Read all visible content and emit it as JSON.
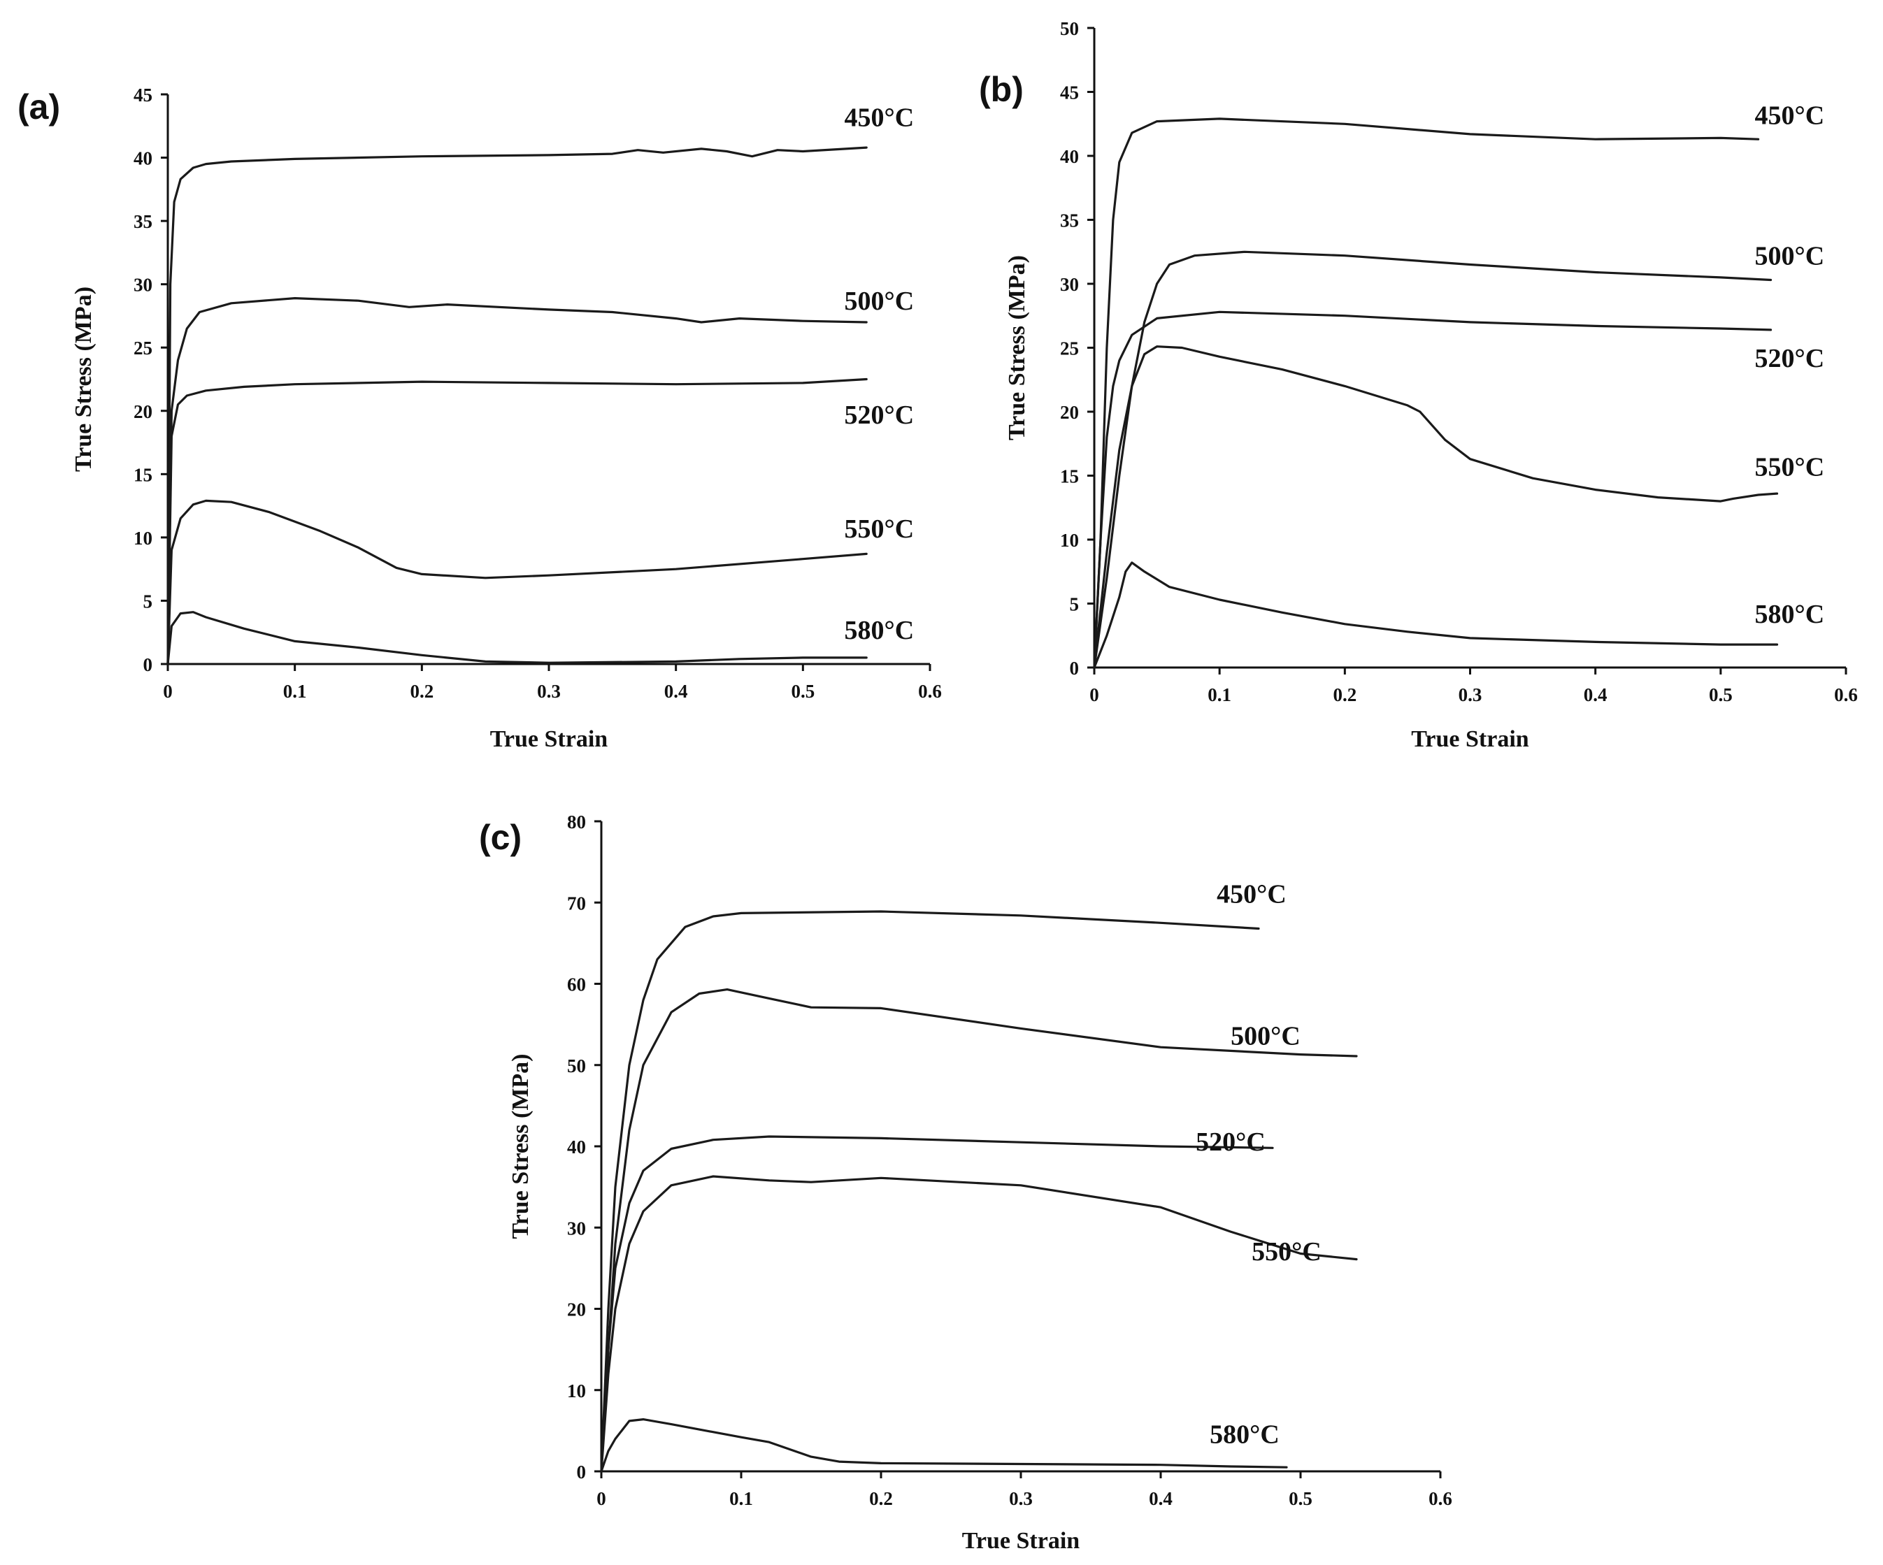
{
  "chart_data": [
    {
      "panel": "(a)",
      "type": "line",
      "xlabel": "True Strain",
      "ylabel": "True Stress (MPa)",
      "xlim": [
        0,
        0.6
      ],
      "ylim": [
        0,
        45
      ],
      "xticks": [
        "0",
        "0.1",
        "0.2",
        "0.3",
        "0.4",
        "0.5",
        "0.6"
      ],
      "yticks": [
        "0",
        "5",
        "10",
        "15",
        "20",
        "25",
        "30",
        "35",
        "40",
        "45"
      ],
      "series": [
        {
          "name": "450°C",
          "label_at": [
            0.56,
            42.5
          ],
          "points": [
            [
              0,
              0
            ],
            [
              0.002,
              30
            ],
            [
              0.005,
              36.5
            ],
            [
              0.01,
              38.3
            ],
            [
              0.02,
              39.2
            ],
            [
              0.03,
              39.5
            ],
            [
              0.05,
              39.7
            ],
            [
              0.1,
              39.9
            ],
            [
              0.2,
              40.1
            ],
            [
              0.3,
              40.2
            ],
            [
              0.35,
              40.3
            ],
            [
              0.37,
              40.6
            ],
            [
              0.39,
              40.4
            ],
            [
              0.42,
              40.7
            ],
            [
              0.44,
              40.5
            ],
            [
              0.46,
              40.1
            ],
            [
              0.48,
              40.6
            ],
            [
              0.5,
              40.5
            ],
            [
              0.55,
              40.8
            ]
          ]
        },
        {
          "name": "500°C",
          "label_at": [
            0.56,
            28.0
          ],
          "points": [
            [
              0,
              0
            ],
            [
              0.003,
              20
            ],
            [
              0.008,
              24
            ],
            [
              0.015,
              26.5
            ],
            [
              0.025,
              27.8
            ],
            [
              0.05,
              28.5
            ],
            [
              0.1,
              28.9
            ],
            [
              0.15,
              28.7
            ],
            [
              0.19,
              28.2
            ],
            [
              0.22,
              28.4
            ],
            [
              0.3,
              28.0
            ],
            [
              0.35,
              27.8
            ],
            [
              0.4,
              27.3
            ],
            [
              0.42,
              27.0
            ],
            [
              0.45,
              27.3
            ],
            [
              0.5,
              27.1
            ],
            [
              0.55,
              27.0
            ]
          ]
        },
        {
          "name": "520°C",
          "label_at": [
            0.56,
            19.0
          ],
          "points": [
            [
              0,
              0
            ],
            [
              0.003,
              18
            ],
            [
              0.008,
              20.5
            ],
            [
              0.015,
              21.2
            ],
            [
              0.03,
              21.6
            ],
            [
              0.06,
              21.9
            ],
            [
              0.1,
              22.1
            ],
            [
              0.2,
              22.3
            ],
            [
              0.3,
              22.2
            ],
            [
              0.4,
              22.1
            ],
            [
              0.5,
              22.2
            ],
            [
              0.55,
              22.5
            ]
          ]
        },
        {
          "name": "550°C",
          "label_at": [
            0.56,
            10.0
          ],
          "points": [
            [
              0,
              0
            ],
            [
              0.003,
              9
            ],
            [
              0.01,
              11.5
            ],
            [
              0.02,
              12.6
            ],
            [
              0.03,
              12.9
            ],
            [
              0.05,
              12.8
            ],
            [
              0.08,
              12.0
            ],
            [
              0.12,
              10.5
            ],
            [
              0.15,
              9.2
            ],
            [
              0.18,
              7.6
            ],
            [
              0.2,
              7.1
            ],
            [
              0.25,
              6.8
            ],
            [
              0.3,
              7.0
            ],
            [
              0.4,
              7.5
            ],
            [
              0.5,
              8.3
            ],
            [
              0.55,
              8.7
            ]
          ]
        },
        {
          "name": "580°C",
          "label_at": [
            0.56,
            2.0
          ],
          "points": [
            [
              0,
              0
            ],
            [
              0.003,
              3
            ],
            [
              0.01,
              4.0
            ],
            [
              0.02,
              4.1
            ],
            [
              0.03,
              3.7
            ],
            [
              0.06,
              2.8
            ],
            [
              0.1,
              1.8
            ],
            [
              0.15,
              1.3
            ],
            [
              0.2,
              0.7
            ],
            [
              0.25,
              0.2
            ],
            [
              0.3,
              0.1
            ],
            [
              0.4,
              0.2
            ],
            [
              0.45,
              0.4
            ],
            [
              0.5,
              0.5
            ],
            [
              0.55,
              0.5
            ]
          ]
        }
      ]
    },
    {
      "panel": "(b)",
      "type": "line",
      "xlabel": "True Strain",
      "ylabel": "True Stress (MPa)",
      "xlim": [
        0,
        0.6
      ],
      "ylim": [
        0,
        50
      ],
      "xticks": [
        "0",
        "0.1",
        "0.2",
        "0.3",
        "0.4",
        "0.5",
        "0.6"
      ],
      "yticks": [
        "0",
        "5",
        "10",
        "15",
        "20",
        "25",
        "30",
        "35",
        "40",
        "45",
        "50"
      ],
      "series": [
        {
          "name": "450°C",
          "label_at": [
            0.555,
            42.5
          ],
          "points": [
            [
              0,
              0
            ],
            [
              0.005,
              10
            ],
            [
              0.01,
              25
            ],
            [
              0.015,
              35
            ],
            [
              0.02,
              39.5
            ],
            [
              0.03,
              41.8
            ],
            [
              0.05,
              42.7
            ],
            [
              0.1,
              42.9
            ],
            [
              0.2,
              42.5
            ],
            [
              0.3,
              41.7
            ],
            [
              0.4,
              41.3
            ],
            [
              0.5,
              41.4
            ],
            [
              0.53,
              41.3
            ]
          ]
        },
        {
          "name": "500°C",
          "label_at": [
            0.555,
            31.5
          ],
          "points": [
            [
              0,
              0
            ],
            [
              0.01,
              7
            ],
            [
              0.02,
              15
            ],
            [
              0.03,
              22
            ],
            [
              0.04,
              27
            ],
            [
              0.05,
              30
            ],
            [
              0.06,
              31.5
            ],
            [
              0.08,
              32.2
            ],
            [
              0.12,
              32.5
            ],
            [
              0.2,
              32.2
            ],
            [
              0.3,
              31.5
            ],
            [
              0.4,
              30.9
            ],
            [
              0.5,
              30.5
            ],
            [
              0.54,
              30.3
            ]
          ]
        },
        {
          "name": "520°C",
          "label_at": [
            0.555,
            23.5
          ],
          "points": [
            [
              0,
              0
            ],
            [
              0.005,
              10
            ],
            [
              0.01,
              18
            ],
            [
              0.015,
              22
            ],
            [
              0.02,
              24
            ],
            [
              0.03,
              26
            ],
            [
              0.05,
              27.3
            ],
            [
              0.1,
              27.8
            ],
            [
              0.2,
              27.5
            ],
            [
              0.3,
              27.0
            ],
            [
              0.4,
              26.7
            ],
            [
              0.5,
              26.5
            ],
            [
              0.54,
              26.4
            ]
          ]
        },
        {
          "name": "550°C",
          "label_at": [
            0.555,
            15.0
          ],
          "points": [
            [
              0,
              0
            ],
            [
              0.01,
              9
            ],
            [
              0.02,
              17
            ],
            [
              0.03,
              22
            ],
            [
              0.04,
              24.5
            ],
            [
              0.05,
              25.1
            ],
            [
              0.07,
              25.0
            ],
            [
              0.1,
              24.3
            ],
            [
              0.15,
              23.3
            ],
            [
              0.2,
              22.0
            ],
            [
              0.25,
              20.5
            ],
            [
              0.26,
              20.0
            ],
            [
              0.28,
              17.8
            ],
            [
              0.3,
              16.3
            ],
            [
              0.35,
              14.8
            ],
            [
              0.4,
              13.9
            ],
            [
              0.45,
              13.3
            ],
            [
              0.5,
              13.0
            ],
            [
              0.51,
              13.2
            ],
            [
              0.53,
              13.5
            ],
            [
              0.545,
              13.6
            ]
          ]
        },
        {
          "name": "580°C",
          "label_at": [
            0.555,
            3.5
          ],
          "points": [
            [
              0,
              0
            ],
            [
              0.01,
              2.5
            ],
            [
              0.02,
              5.5
            ],
            [
              0.025,
              7.5
            ],
            [
              0.03,
              8.2
            ],
            [
              0.04,
              7.5
            ],
            [
              0.06,
              6.3
            ],
            [
              0.1,
              5.3
            ],
            [
              0.15,
              4.3
            ],
            [
              0.2,
              3.4
            ],
            [
              0.25,
              2.8
            ],
            [
              0.3,
              2.3
            ],
            [
              0.4,
              2.0
            ],
            [
              0.5,
              1.8
            ],
            [
              0.545,
              1.8
            ]
          ]
        }
      ]
    },
    {
      "panel": "(c)",
      "type": "line",
      "xlabel": "True Strain",
      "ylabel": "True Stress (MPa)",
      "xlim": [
        0,
        0.6
      ],
      "ylim": [
        0,
        80
      ],
      "xticks": [
        "0",
        "0.1",
        "0.2",
        "0.3",
        "0.4",
        "0.5",
        "0.6"
      ],
      "yticks": [
        "0",
        "10",
        "20",
        "30",
        "40",
        "50",
        "60",
        "70",
        "80"
      ],
      "series": [
        {
          "name": "450°C",
          "label_at": [
            0.465,
            70.0
          ],
          "points": [
            [
              0,
              0
            ],
            [
              0.005,
              20
            ],
            [
              0.01,
              35
            ],
            [
              0.02,
              50
            ],
            [
              0.03,
              58
            ],
            [
              0.04,
              63
            ],
            [
              0.06,
              67
            ],
            [
              0.08,
              68.3
            ],
            [
              0.1,
              68.7
            ],
            [
              0.2,
              68.9
            ],
            [
              0.3,
              68.4
            ],
            [
              0.4,
              67.5
            ],
            [
              0.47,
              66.8
            ]
          ]
        },
        {
          "name": "500°C",
          "label_at": [
            0.475,
            52.5
          ],
          "points": [
            [
              0,
              0
            ],
            [
              0.005,
              15
            ],
            [
              0.01,
              28
            ],
            [
              0.02,
              42
            ],
            [
              0.03,
              50
            ],
            [
              0.05,
              56.5
            ],
            [
              0.07,
              58.8
            ],
            [
              0.09,
              59.3
            ],
            [
              0.12,
              58.2
            ],
            [
              0.15,
              57.1
            ],
            [
              0.2,
              57.0
            ],
            [
              0.3,
              54.5
            ],
            [
              0.4,
              52.2
            ],
            [
              0.5,
              51.3
            ],
            [
              0.54,
              51.1
            ]
          ]
        },
        {
          "name": "520°C",
          "label_at": [
            0.45,
            39.5
          ],
          "points": [
            [
              0,
              0
            ],
            [
              0.005,
              15
            ],
            [
              0.01,
              25
            ],
            [
              0.02,
              33
            ],
            [
              0.03,
              37
            ],
            [
              0.05,
              39.7
            ],
            [
              0.08,
              40.8
            ],
            [
              0.12,
              41.2
            ],
            [
              0.2,
              41.0
            ],
            [
              0.3,
              40.5
            ],
            [
              0.4,
              40.0
            ],
            [
              0.48,
              39.8
            ]
          ]
        },
        {
          "name": "550°C",
          "label_at": [
            0.49,
            26.0
          ],
          "points": [
            [
              0,
              0
            ],
            [
              0.005,
              12
            ],
            [
              0.01,
              20
            ],
            [
              0.02,
              28
            ],
            [
              0.03,
              32
            ],
            [
              0.05,
              35.2
            ],
            [
              0.08,
              36.3
            ],
            [
              0.12,
              35.8
            ],
            [
              0.15,
              35.6
            ],
            [
              0.2,
              36.1
            ],
            [
              0.3,
              35.2
            ],
            [
              0.4,
              32.5
            ],
            [
              0.45,
              29.5
            ],
            [
              0.5,
              26.8
            ],
            [
              0.54,
              26.1
            ]
          ]
        },
        {
          "name": "580°C",
          "label_at": [
            0.46,
            3.5
          ],
          "points": [
            [
              0,
              0
            ],
            [
              0.005,
              2.5
            ],
            [
              0.01,
              4
            ],
            [
              0.02,
              6.2
            ],
            [
              0.03,
              6.4
            ],
            [
              0.05,
              5.8
            ],
            [
              0.1,
              4.2
            ],
            [
              0.12,
              3.6
            ],
            [
              0.15,
              1.8
            ],
            [
              0.17,
              1.2
            ],
            [
              0.2,
              1.0
            ],
            [
              0.3,
              0.9
            ],
            [
              0.4,
              0.8
            ],
            [
              0.45,
              0.6
            ],
            [
              0.49,
              0.5
            ]
          ]
        }
      ]
    }
  ]
}
